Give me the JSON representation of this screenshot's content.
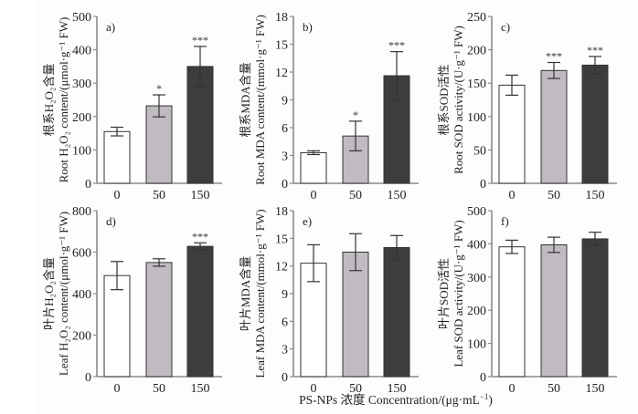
{
  "figure": {
    "x_axis_title": "PS-NPs 浓度 Concentration/(μg·mL",
    "x_axis_title_sup": "−1",
    "x_axis_title_tail": ")",
    "colors": {
      "0": "#ffffff",
      "50": "#c0bbc0",
      "150": "#3d3d3d",
      "axis": "#8a8a8a",
      "bar_stroke": "#333333",
      "error_bar": "#333333"
    }
  },
  "chart_data": [
    {
      "type": "bar",
      "panel": "a)",
      "ylabel_cn": "根系H₂O₂含量",
      "ylabel_en": "Root H₂O₂ content/(μmol·g⁻¹ FW)",
      "categories": [
        "0",
        "50",
        "150"
      ],
      "values": [
        155,
        232,
        350
      ],
      "errors": [
        13,
        33,
        60
      ],
      "significance": [
        "",
        "*",
        "***"
      ],
      "ylim": [
        0,
        500
      ],
      "yticks": [
        0,
        100,
        200,
        300,
        400,
        500
      ]
    },
    {
      "type": "bar",
      "panel": "b)",
      "ylabel_cn": "根系MDA含量",
      "ylabel_en": "Root MDA content/(mmol·g⁻¹ FW)",
      "categories": [
        "0",
        "50",
        "150"
      ],
      "values": [
        3.3,
        5.1,
        11.6
      ],
      "errors": [
        0.2,
        1.6,
        2.6
      ],
      "significance": [
        "",
        "*",
        "***"
      ],
      "ylim": [
        0,
        18
      ],
      "yticks": [
        0,
        3,
        6,
        9,
        12,
        15,
        18
      ]
    },
    {
      "type": "bar",
      "panel": "c)",
      "ylabel_cn": "根系SOD活性",
      "ylabel_en": "Root SOD activity/(U·g⁻¹ FW)",
      "categories": [
        "0",
        "50",
        "150"
      ],
      "values": [
        147,
        169,
        177
      ],
      "errors": [
        15,
        12,
        13
      ],
      "significance": [
        "",
        "***",
        "***"
      ],
      "ylim": [
        0,
        250
      ],
      "yticks": [
        0,
        50,
        100,
        150,
        200,
        250
      ]
    },
    {
      "type": "bar",
      "panel": "d)",
      "ylabel_cn": "叶片H₂O₂含量",
      "ylabel_en": "Leaf H₂O₂ content/(μmol·g⁻¹ FW)",
      "categories": [
        "0",
        "50",
        "150"
      ],
      "values": [
        487,
        550,
        628
      ],
      "errors": [
        68,
        18,
        17
      ],
      "significance": [
        "",
        "",
        "***"
      ],
      "ylim": [
        0,
        800
      ],
      "yticks": [
        0,
        200,
        400,
        600,
        800
      ]
    },
    {
      "type": "bar",
      "panel": "e)",
      "ylabel_cn": "叶片MDA含量",
      "ylabel_en": "Leaf MDA content/(mmol·g⁻¹ FW)",
      "categories": [
        "0",
        "50",
        "150"
      ],
      "values": [
        12.3,
        13.5,
        14.0
      ],
      "errors": [
        2.0,
        2.0,
        1.3
      ],
      "significance": [
        "",
        "",
        ""
      ],
      "ylim": [
        0,
        18
      ],
      "yticks": [
        0,
        3,
        6,
        9,
        12,
        15,
        18
      ]
    },
    {
      "type": "bar",
      "panel": "f)",
      "ylabel_cn": "叶片SOD活性",
      "ylabel_en": "Leaf SOD activity/(U·g⁻¹ FW)",
      "categories": [
        "0",
        "50",
        "150"
      ],
      "values": [
        391,
        397,
        415
      ],
      "errors": [
        20,
        23,
        20
      ],
      "significance": [
        "",
        "",
        ""
      ],
      "ylim": [
        0,
        500
      ],
      "yticks": [
        0,
        100,
        200,
        300,
        400,
        500
      ]
    }
  ]
}
